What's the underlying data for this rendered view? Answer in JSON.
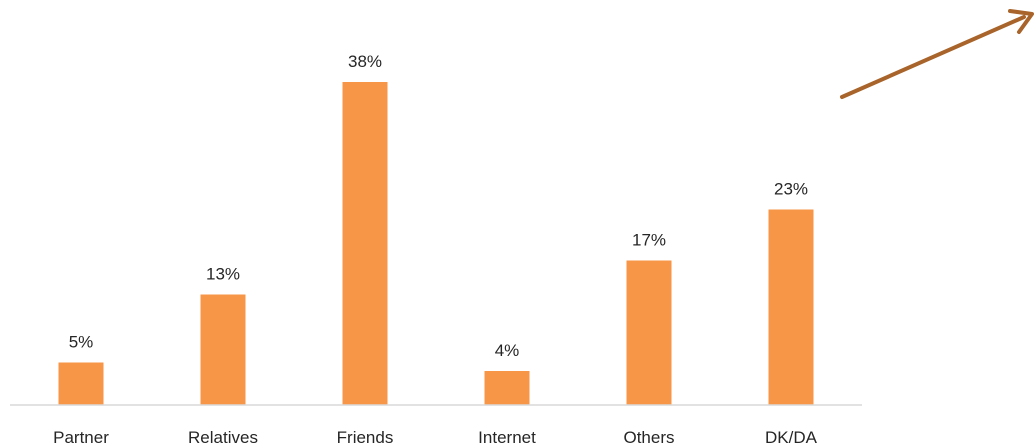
{
  "chart_data": {
    "type": "bar",
    "categories": [
      "Partner",
      "Relatives",
      "Friends",
      "Internet",
      "Others",
      "DK/DA"
    ],
    "values": [
      5,
      13,
      38,
      4,
      17,
      23
    ],
    "value_labels": [
      "5%",
      "13%",
      "38%",
      "4%",
      "17%",
      "23%"
    ],
    "unit": "%",
    "ylim": [
      0,
      40
    ],
    "grid": false,
    "legend": "none",
    "bar_color": "#F79646",
    "axis_color": "#D9D9D9",
    "text_color": "#262626"
  },
  "annotation": {
    "type": "arrow",
    "icon": "arrow-up-right-icon",
    "color": "#A8642A"
  }
}
